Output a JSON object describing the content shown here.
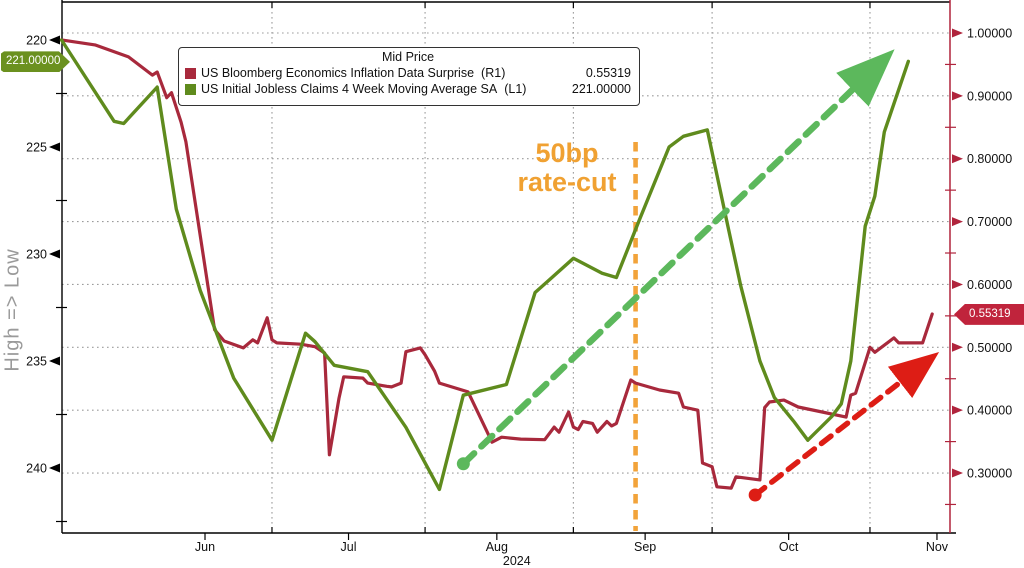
{
  "chart_data": {
    "type": "line",
    "title": "Mid Price",
    "x_axis": {
      "unit": "days since 2024-05-01",
      "month_labels": [
        {
          "label": "Jun",
          "day": 31
        },
        {
          "label": "Jul",
          "day": 61
        },
        {
          "label": "Aug",
          "day": 92
        },
        {
          "label": "Sep",
          "day": 123
        },
        {
          "label": "Oct",
          "day": 153
        },
        {
          "label": "Nov",
          "day": 184
        }
      ],
      "year_label": "2024",
      "minor_gridline_days": [
        45,
        77,
        108,
        137,
        170
      ]
    },
    "left_axis": {
      "title": "High => Low",
      "inverted": true,
      "ticks": [
        "220",
        "225",
        "230",
        "235",
        "240"
      ],
      "tick_values": [
        220,
        225,
        230,
        235,
        240
      ],
      "last_badge": "221.00000"
    },
    "right_axis": {
      "ticks": [
        "1.00000",
        "0.90000",
        "0.80000",
        "0.70000",
        "0.60000",
        "0.50000",
        "0.40000",
        "0.30000"
      ],
      "tick_values": [
        1.0,
        0.9,
        0.8,
        0.7,
        0.6,
        0.5,
        0.4,
        0.3
      ],
      "last_badge": "0.55319"
    },
    "series": [
      {
        "name": "US Bloomberg Economics Inflation Data Surprise",
        "axis": "R1",
        "color": "#a8293c",
        "last_value": 0.55319,
        "points": [
          [
            1,
            0.989
          ],
          [
            8,
            0.981
          ],
          [
            15,
            0.962
          ],
          [
            20,
            0.933
          ],
          [
            21,
            0.938
          ],
          [
            23,
            0.897
          ],
          [
            24,
            0.905
          ],
          [
            26,
            0.858
          ],
          [
            27,
            0.827
          ],
          [
            33,
            0.528
          ],
          [
            35,
            0.51
          ],
          [
            39,
            0.499
          ],
          [
            41,
            0.512
          ],
          [
            42,
            0.507
          ],
          [
            44,
            0.547
          ],
          [
            45,
            0.512
          ],
          [
            46,
            0.507
          ],
          [
            51,
            0.505
          ],
          [
            54,
            0.501
          ],
          [
            56,
            0.491
          ],
          [
            57,
            0.329
          ],
          [
            59,
            0.419
          ],
          [
            60,
            0.453
          ],
          [
            64,
            0.451
          ],
          [
            65,
            0.443
          ],
          [
            69,
            0.438
          ],
          [
            70,
            0.437
          ],
          [
            72,
            0.443
          ],
          [
            73,
            0.493
          ],
          [
            76,
            0.499
          ],
          [
            77,
            0.488
          ],
          [
            79,
            0.462
          ],
          [
            80,
            0.443
          ],
          [
            86,
            0.429
          ],
          [
            90,
            0.365
          ],
          [
            91,
            0.349
          ],
          [
            93,
            0.357
          ],
          [
            97,
            0.354
          ],
          [
            102,
            0.353
          ],
          [
            104,
            0.373
          ],
          [
            105,
            0.365
          ],
          [
            107,
            0.397
          ],
          [
            108,
            0.373
          ],
          [
            109,
            0.369
          ],
          [
            110,
            0.382
          ],
          [
            112,
            0.379
          ],
          [
            113,
            0.365
          ],
          [
            115,
            0.382
          ],
          [
            116,
            0.375
          ],
          [
            117,
            0.379
          ],
          [
            120,
            0.448
          ],
          [
            121,
            0.443
          ],
          [
            126,
            0.432
          ],
          [
            130,
            0.427
          ],
          [
            131,
            0.405
          ],
          [
            134,
            0.4
          ],
          [
            135,
            0.316
          ],
          [
            137,
            0.31
          ],
          [
            138,
            0.278
          ],
          [
            141,
            0.276
          ],
          [
            142,
            0.294
          ],
          [
            147,
            0.289
          ],
          [
            148,
            0.404
          ],
          [
            149,
            0.413
          ],
          [
            152,
            0.416
          ],
          [
            155,
            0.405
          ],
          [
            160,
            0.397
          ],
          [
            165,
            0.389
          ],
          [
            166,
            0.424
          ],
          [
            167,
            0.427
          ],
          [
            170,
            0.5
          ],
          [
            171,
            0.492
          ],
          [
            175,
            0.515
          ],
          [
            176,
            0.507
          ],
          [
            181,
            0.507
          ],
          [
            183,
            0.553
          ]
        ]
      },
      {
        "name": "US Initial Jobless Claims 4 Week Moving Average SA",
        "axis": "L1",
        "color": "#5f8b1d",
        "last_value": 221.0,
        "points": [
          [
            1,
            220.0
          ],
          [
            12,
            223.8
          ],
          [
            14,
            223.9
          ],
          [
            21,
            222.2
          ],
          [
            25,
            227.9
          ],
          [
            30,
            231.7
          ],
          [
            37,
            235.8
          ],
          [
            45,
            238.7
          ],
          [
            52,
            233.7
          ],
          [
            54,
            234.1
          ],
          [
            58,
            235.2
          ],
          [
            65,
            235.5
          ],
          [
            73,
            238.1
          ],
          [
            80,
            241.0
          ],
          [
            85,
            236.6
          ],
          [
            94,
            236.1
          ],
          [
            100,
            231.8
          ],
          [
            102,
            231.4
          ],
          [
            108,
            230.2
          ],
          [
            114,
            230.9
          ],
          [
            117,
            231.1
          ],
          [
            122,
            228.3
          ],
          [
            128,
            225.0
          ],
          [
            131,
            224.5
          ],
          [
            136,
            224.2
          ],
          [
            140,
            228.4
          ],
          [
            143,
            231.5
          ],
          [
            147,
            235.0
          ],
          [
            150,
            236.7
          ],
          [
            154,
            237.8
          ],
          [
            157,
            238.7
          ],
          [
            162,
            237.6
          ],
          [
            164,
            237.0
          ],
          [
            166,
            235.0
          ],
          [
            169,
            228.7
          ],
          [
            171,
            227.3
          ],
          [
            173,
            224.3
          ],
          [
            178,
            221.0
          ]
        ]
      }
    ],
    "annotations": {
      "event_line": {
        "day": 121,
        "color": "#f2a33a",
        "label_line1": "50bp",
        "label_line2": "rate-cut",
        "label_color": "#f0a132"
      },
      "trend_arrows": [
        {
          "axis": "L1",
          "color": "#5cb85c",
          "from": [
            85,
            239.8
          ],
          "to": [
            172.5,
            221.0
          ]
        },
        {
          "axis": "R1",
          "color": "#dd1d15",
          "from": [
            146,
            0.265
          ],
          "to": [
            182,
            0.478
          ]
        }
      ]
    }
  },
  "legend": {
    "title": "Mid Price",
    "rows": [
      {
        "label": "US Bloomberg Economics Inflation Data Surprise",
        "axis": "(R1)",
        "value": "0.55319",
        "color": "#a8293c"
      },
      {
        "label": "US Initial Jobless Claims 4 Week Moving Average SA",
        "axis": "(L1)",
        "value": "221.00000",
        "color": "#5f8b1d"
      }
    ]
  }
}
